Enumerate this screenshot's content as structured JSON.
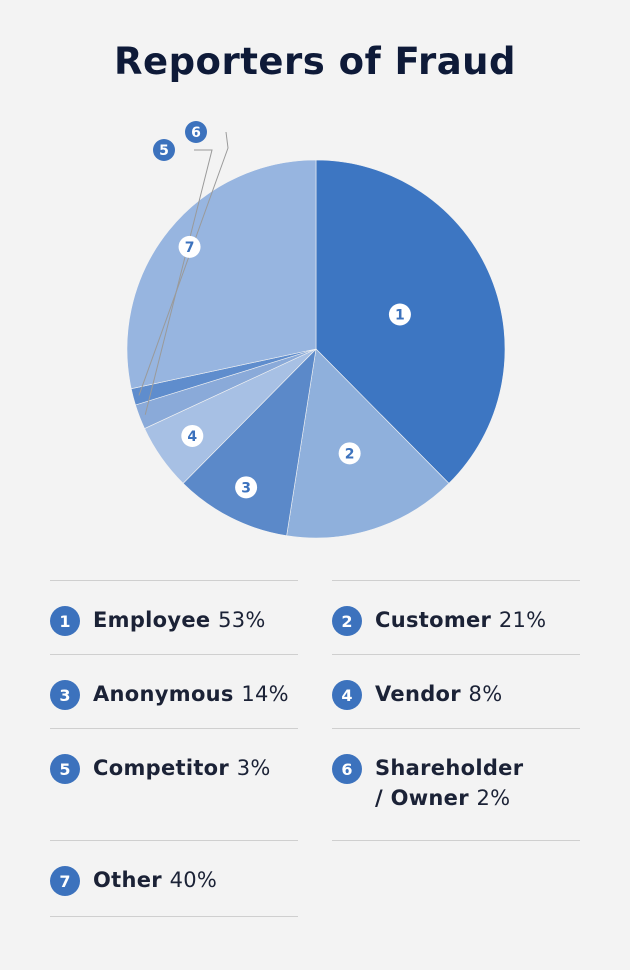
{
  "title": "Reporters of Fraud",
  "colors": {
    "slices": [
      "#3d76c2",
      "#8fb0dc",
      "#5b89c9",
      "#a7c0e4",
      "#8aaad9",
      "#5f8dcd",
      "#97b5e0"
    ],
    "badge": "#3c72bd",
    "badge_on_chart": "#ffffff"
  },
  "chart_data": {
    "type": "pie",
    "title": "Reporters of Fraud",
    "unit": "%",
    "slices": [
      {
        "id": "1",
        "label": "Employee",
        "value": 53
      },
      {
        "id": "2",
        "label": "Customer",
        "value": 21
      },
      {
        "id": "3",
        "label": "Anonymous",
        "value": 14
      },
      {
        "id": "4",
        "label": "Vendor",
        "value": 8
      },
      {
        "id": "5",
        "label": "Competitor",
        "value": 3
      },
      {
        "id": "6",
        "label": "Shareholder / Owner",
        "value": 2
      },
      {
        "id": "7",
        "label": "Other",
        "value": 40
      }
    ]
  },
  "legend": {
    "items": [
      {
        "num": "1",
        "label": "Employee",
        "pct": "53%"
      },
      {
        "num": "2",
        "label": "Customer",
        "pct": "21%"
      },
      {
        "num": "3",
        "label": "Anonymous",
        "pct": "14%"
      },
      {
        "num": "4",
        "label": "Vendor",
        "pct": "8%"
      },
      {
        "num": "5",
        "label": "Competitor",
        "pct": "3%"
      },
      {
        "num": "6",
        "label": "Shareholder",
        "label2": "/ Owner",
        "pct": "2%"
      },
      {
        "num": "7",
        "label": "Other",
        "pct": "40%"
      }
    ]
  }
}
